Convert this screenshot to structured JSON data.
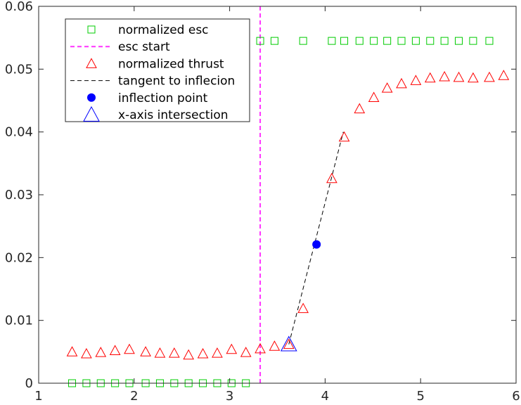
{
  "chart_data": {
    "type": "scatter",
    "title": "",
    "xlabel": "",
    "ylabel": "",
    "xlim": [
      1,
      6
    ],
    "ylim": [
      0,
      0.06
    ],
    "xticks": [
      1,
      2,
      3,
      4,
      5,
      6
    ],
    "yticks": [
      0,
      0.01,
      0.02,
      0.03,
      0.04,
      0.05,
      0.06
    ],
    "xtick_labels": [
      "1",
      "2",
      "3",
      "4",
      "5",
      "6"
    ],
    "ytick_labels": [
      "0",
      "0.01",
      "0.02",
      "0.03",
      "0.04",
      "0.05",
      "0.06"
    ],
    "grid": false,
    "legend_position": "top-left",
    "series": [
      {
        "name": "normalized esc",
        "marker": "square-open",
        "color": "#00cc00",
        "x": [
          1.35,
          1.5,
          1.65,
          1.8,
          1.95,
          2.12,
          2.27,
          2.42,
          2.57,
          2.72,
          2.87,
          3.02,
          3.17,
          3.32,
          3.47,
          3.77,
          4.07,
          4.2,
          4.36,
          4.51,
          4.65,
          4.8,
          4.95,
          5.1,
          5.25,
          5.4,
          5.55,
          5.72
        ],
        "y": [
          0,
          0,
          0,
          0,
          0,
          0,
          0,
          0,
          0,
          0,
          0,
          0,
          0,
          0.0545,
          0.0545,
          0.0545,
          0.0545,
          0.0545,
          0.0545,
          0.0545,
          0.0545,
          0.0545,
          0.0545,
          0.0545,
          0.0545,
          0.0545,
          0.0545,
          0.0545
        ]
      },
      {
        "name": "esc start",
        "style": "vertical-dashed-line",
        "color": "#ff33ff",
        "x": 3.32
      },
      {
        "name": "normalized thrust",
        "marker": "triangle-open",
        "color": "#ff0000",
        "x": [
          1.35,
          1.5,
          1.65,
          1.8,
          1.95,
          2.12,
          2.27,
          2.42,
          2.57,
          2.72,
          2.87,
          3.02,
          3.17,
          3.32,
          3.47,
          3.62,
          3.77,
          4.07,
          4.2,
          4.36,
          4.51,
          4.65,
          4.8,
          4.95,
          5.1,
          5.25,
          5.4,
          5.55,
          5.72,
          5.87
        ],
        "y": [
          0.005,
          0.0047,
          0.0049,
          0.0052,
          0.0054,
          0.005,
          0.0048,
          0.0048,
          0.0045,
          0.0047,
          0.0048,
          0.0054,
          0.0049,
          0.0055,
          0.0059,
          0.0062,
          0.0119,
          0.0326,
          0.0392,
          0.0437,
          0.0455,
          0.047,
          0.0477,
          0.0482,
          0.0486,
          0.0488,
          0.0487,
          0.0486,
          0.0487,
          0.049
        ]
      },
      {
        "name": "tangent to inflecion",
        "style": "dashed-line",
        "color": "#000000",
        "x": [
          3.62,
          4.19
        ],
        "y": [
          0.0062,
          0.04
        ]
      },
      {
        "name": "inflection point",
        "marker": "circle-filled",
        "color": "#0000ff",
        "x": [
          3.91
        ],
        "y": [
          0.0221
        ]
      },
      {
        "name": "x-axis intersection",
        "marker": "triangle-open-large",
        "color": "#0000ff",
        "x": [
          3.62
        ],
        "y": [
          0.0062
        ]
      }
    ]
  }
}
